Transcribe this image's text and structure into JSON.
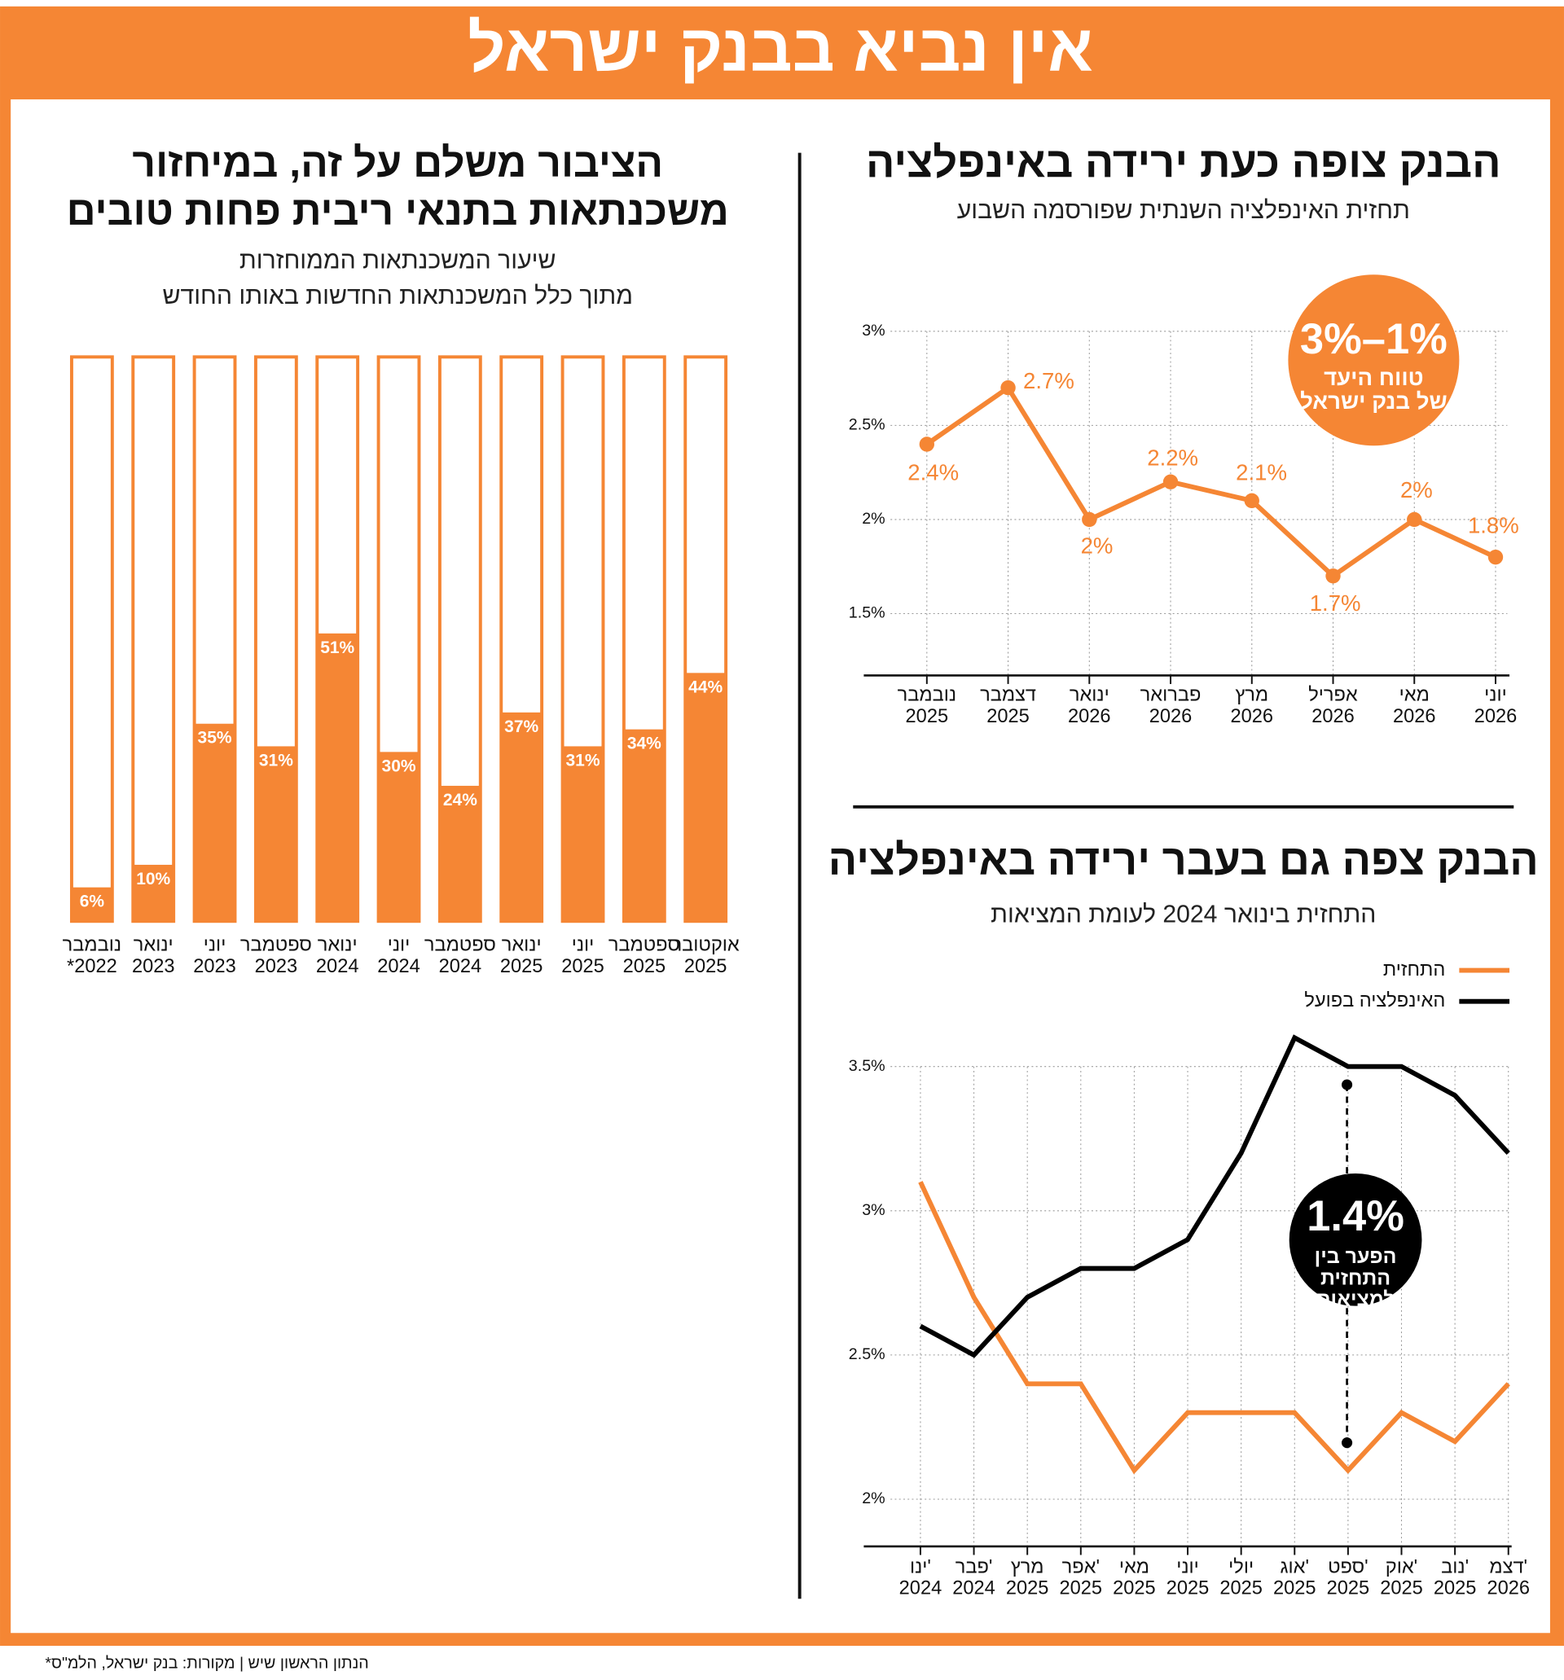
{
  "header": {
    "title": "אין נביא בבנק ישראל"
  },
  "chart_data": [
    {
      "type": "bar",
      "title": [
        "הציבור משלם על זה, במיחזור",
        "משכנתאות בתנאי ריבית פחות טובים"
      ],
      "subtitle": [
        "שיעור המשכנתאות הממוחזרות",
        "מתוך כלל המשכנתאות החדשות באותו החודש"
      ],
      "categories": [
        [
          "נובמבר",
          "*2022"
        ],
        [
          "ינואר",
          "2023"
        ],
        [
          "יוני",
          "2023"
        ],
        [
          "ספטמבר",
          "2023"
        ],
        [
          "ינואר",
          "2024"
        ],
        [
          "יוני",
          "2024"
        ],
        [
          "ספטמבר",
          "2024"
        ],
        [
          "ינואר",
          "2025"
        ],
        [
          "יוני",
          "2025"
        ],
        [
          "ספטמבר",
          "2025"
        ],
        [
          "אוקטובר",
          "2025"
        ]
      ],
      "values": [
        6,
        10,
        35,
        31,
        51,
        30,
        24,
        37,
        31,
        34,
        44
      ],
      "value_labels": [
        "6%",
        "10%",
        "35%",
        "31%",
        "51%",
        "30%",
        "24%",
        "37%",
        "31%",
        "34%",
        "44%"
      ],
      "color": "#f58634",
      "ylim": [
        0,
        100
      ]
    },
    {
      "type": "line",
      "title": [
        "הבנק צופה כעת ירידה באינפלציה"
      ],
      "subtitle": [
        "תחזית האינפלציה השנתית שפורסמה השבוע"
      ],
      "categories": [
        [
          "נובמבר",
          "2025"
        ],
        [
          "דצמבר",
          "2025"
        ],
        [
          "ינואר",
          "2026"
        ],
        [
          "פברואר",
          "2026"
        ],
        [
          "מרץ",
          "2026"
        ],
        [
          "אפריל",
          "2026"
        ],
        [
          "מאי",
          "2026"
        ],
        [
          "יוני",
          "2026"
        ]
      ],
      "series": [
        {
          "color": "#f58634",
          "values": [
            2.4,
            2.7,
            2.0,
            2.2,
            2.1,
            1.7,
            2.0,
            1.8
          ],
          "value_labels": [
            "2.4%",
            "2.7%",
            "2%",
            "2.2%",
            "2.1%",
            "1.7%",
            "2%",
            "1.8%"
          ]
        }
      ],
      "ylim": [
        1.2,
        3
      ],
      "yticks": [
        {
          "value": 1.5,
          "label": "1.5%"
        },
        {
          "value": 2,
          "label": "2%"
        },
        {
          "value": 2.5,
          "label": "2.5%"
        },
        {
          "value": 3,
          "label": "3%"
        }
      ],
      "grid": true,
      "annotation": {
        "headline": "3%–1%",
        "text": [
          "טווח היעד",
          "של בנק ישראל"
        ]
      }
    },
    {
      "type": "line",
      "title": [
        "הבנק צפה גם בעבר ירידה באינפלציה"
      ],
      "subtitle": [
        "התחזית בינואר 2024 לעומת המציאות"
      ],
      "categories": [
        [
          "ינו'",
          "2024"
        ],
        [
          "פבר'",
          "2024"
        ],
        [
          "מרץ",
          "2025"
        ],
        [
          "אפר'",
          "2025"
        ],
        [
          "מאי",
          "2025"
        ],
        [
          "יוני",
          "2025"
        ],
        [
          "יולי",
          "2025"
        ],
        [
          "אוג'",
          "2025"
        ],
        [
          "ספט'",
          "2025"
        ],
        [
          "אוק'",
          "2025"
        ],
        [
          "נוב'",
          "2025"
        ],
        [
          "דצמ'",
          "2026"
        ]
      ],
      "series": [
        {
          "name": "התחזית",
          "color": "#f58634",
          "values": [
            3.1,
            2.7,
            2.4,
            2.4,
            2.1,
            2.3,
            2.3,
            2.3,
            2.1,
            2.3,
            2.2,
            2.4
          ]
        },
        {
          "name": "האינפלציה בפועל",
          "color": "#000000",
          "values": [
            2.6,
            2.5,
            2.7,
            2.8,
            2.8,
            2.9,
            3.2,
            3.6,
            3.5,
            3.5,
            3.4,
            3.2
          ]
        }
      ],
      "ylim": [
        1.84,
        3.6
      ],
      "yticks": [
        {
          "value": 2,
          "label": "2%"
        },
        {
          "value": 2.5,
          "label": "2.5%"
        },
        {
          "value": 3,
          "label": "3%"
        },
        {
          "value": 3.5,
          "label": "3.5%"
        }
      ],
      "grid": true,
      "legend": "top-right",
      "annotation": {
        "headline": "1.4%",
        "text": [
          "הפער בין",
          "התחזית",
          "למציאות"
        ]
      }
    }
  ],
  "footer": "*הנתון הראשון שיש | מקורות: בנק ישראל, הלמ\"ס"
}
